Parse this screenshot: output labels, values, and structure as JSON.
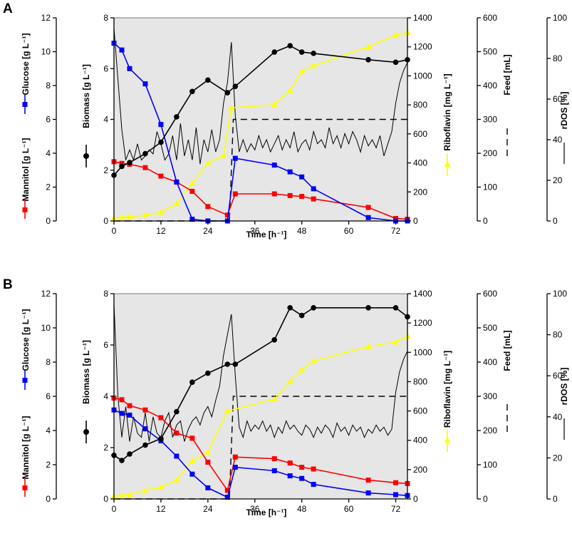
{
  "chart_data": [
    {
      "type": "line",
      "panel": "A",
      "xlabel": "Time [h⁻¹]",
      "xlim": [
        0,
        75
      ],
      "xticks": [
        0,
        12,
        24,
        36,
        48,
        60,
        72
      ],
      "axes": {
        "glucose": {
          "label": "Glucose [g L⁻¹]",
          "lim": [
            0,
            12
          ],
          "ticks": [
            0,
            2,
            4,
            6,
            8,
            10,
            12
          ]
        },
        "mannitol": {
          "label": "Mannitol [g L⁻¹]",
          "lim": [
            0,
            12
          ],
          "ticks": [
            0,
            2,
            4,
            6,
            8,
            10,
            12
          ]
        },
        "biomass": {
          "label": "Biomass [g L⁻¹]",
          "lim": [
            0,
            8
          ],
          "ticks": [
            0,
            2,
            4,
            6,
            8
          ]
        },
        "riboflavin": {
          "label": "Riboflavin [mg L⁻¹]",
          "lim": [
            0,
            1400
          ],
          "ticks": [
            0,
            200,
            400,
            600,
            800,
            1000,
            1200,
            1400
          ]
        },
        "feed": {
          "label": "Feed [mL]",
          "lim": [
            0,
            600
          ],
          "ticks": [
            0,
            100,
            200,
            300,
            400,
            500,
            600
          ]
        },
        "rdos": {
          "label": "rDOS [%]",
          "lim": [
            0,
            100
          ],
          "ticks": [
            0,
            20,
            40,
            60,
            80,
            100
          ]
        }
      },
      "series": [
        {
          "name": "Glucose",
          "axis": "glucose",
          "color": "#0000ff",
          "marker": "square",
          "x": [
            0,
            2,
            4,
            8,
            12,
            16,
            20,
            24,
            29,
            31,
            41,
            45,
            48,
            51,
            65,
            72,
            75
          ],
          "y": [
            10.5,
            10.1,
            9.0,
            8.1,
            5.7,
            2.3,
            0.1,
            0.0,
            0.0,
            3.7,
            3.3,
            2.9,
            2.6,
            1.9,
            0.2,
            0.0,
            0.0
          ]
        },
        {
          "name": "Mannitol",
          "axis": "mannitol",
          "color": "#ff0000",
          "marker": "square",
          "x": [
            0,
            2,
            4,
            8,
            12,
            16,
            20,
            24,
            29,
            31,
            41,
            45,
            48,
            51,
            65,
            72,
            75
          ],
          "y": [
            3.5,
            3.4,
            3.35,
            3.15,
            2.65,
            2.3,
            1.75,
            0.85,
            0.35,
            1.6,
            1.6,
            1.5,
            1.45,
            1.3,
            0.8,
            0.15,
            0.1
          ]
        },
        {
          "name": "Biomass",
          "axis": "biomass",
          "color": "#000000",
          "marker": "circle",
          "x": [
            0,
            2,
            4,
            8,
            12,
            16,
            20,
            24,
            29,
            31,
            41,
            45,
            48,
            51,
            65,
            72,
            75
          ],
          "y": [
            1.8,
            2.15,
            2.3,
            2.65,
            3.1,
            4.1,
            5.1,
            5.55,
            5.05,
            5.3,
            6.65,
            6.9,
            6.65,
            6.6,
            6.35,
            6.25,
            6.35
          ]
        },
        {
          "name": "Riboflavin",
          "axis": "riboflavin",
          "color": "#ffff00",
          "marker": "triangle",
          "x": [
            0,
            2,
            4,
            8,
            12,
            16,
            20,
            24,
            28,
            30,
            41,
            45,
            48,
            51,
            65,
            72,
            75
          ],
          "y": [
            20,
            25,
            30,
            40,
            60,
            120,
            260,
            400,
            450,
            780,
            800,
            900,
            1030,
            1070,
            1200,
            1280,
            1300
          ]
        },
        {
          "name": "Feed",
          "axis": "feed",
          "color": "#000000",
          "style": "dashed",
          "x": [
            0,
            29.5,
            30.5,
            75
          ],
          "y": [
            0,
            0,
            300,
            300
          ]
        },
        {
          "name": "rDOS",
          "axis": "rdos",
          "color": "#000000",
          "style": "solid-thin",
          "x": [
            0,
            1,
            2,
            3,
            4,
            5,
            6,
            7,
            8,
            9,
            10,
            11,
            12,
            13,
            14,
            15,
            16,
            17,
            18,
            19,
            20,
            21,
            22,
            23,
            24,
            25,
            26,
            27,
            28,
            29,
            30,
            31,
            32,
            33,
            34,
            35,
            36,
            37,
            38,
            39,
            40,
            41,
            42,
            43,
            44,
            45,
            46,
            47,
            48,
            49,
            50,
            51,
            52,
            53,
            54,
            55,
            56,
            57,
            58,
            59,
            60,
            61,
            62,
            63,
            64,
            65,
            66,
            67,
            68,
            69,
            70,
            71,
            72,
            73,
            74,
            75
          ],
          "y": [
            95,
            70,
            45,
            30,
            35,
            30,
            38,
            30,
            32,
            35,
            33,
            44,
            38,
            30,
            33,
            42,
            30,
            48,
            32,
            40,
            30,
            46,
            28,
            40,
            34,
            45,
            34,
            40,
            58,
            68,
            88,
            52,
            34,
            40,
            34,
            38,
            35,
            42,
            36,
            40,
            34,
            38,
            42,
            35,
            40,
            36,
            44,
            34,
            38,
            40,
            35,
            44,
            38,
            40,
            36,
            46,
            38,
            42,
            36,
            43,
            38,
            44,
            40,
            34,
            42,
            37,
            40,
            36,
            42,
            32,
            38,
            44,
            58,
            68,
            74,
            78
          ]
        }
      ]
    },
    {
      "type": "line",
      "panel": "B",
      "xlabel": "Time [h⁻¹]",
      "xlim": [
        0,
        75
      ],
      "xticks": [
        0,
        12,
        24,
        36,
        48,
        60,
        72
      ],
      "axes": {
        "glucose": {
          "label": "Glucose [g L⁻¹]",
          "lim": [
            0,
            12
          ],
          "ticks": [
            0,
            2,
            4,
            6,
            8,
            10,
            12
          ]
        },
        "mannitol": {
          "label": "Mannitol [g L⁻¹]",
          "lim": [
            0,
            12
          ],
          "ticks": [
            0,
            2,
            4,
            6,
            8,
            10,
            12
          ]
        },
        "biomass": {
          "label": "Biomass [g L⁻¹]",
          "lim": [
            0,
            8
          ],
          "ticks": [
            0,
            2,
            4,
            6,
            8
          ]
        },
        "riboflavin": {
          "label": "Riboflavin [mg L⁻¹]",
          "lim": [
            0,
            1400
          ],
          "ticks": [
            0,
            200,
            400,
            600,
            800,
            1000,
            1200,
            1400
          ]
        },
        "feed": {
          "label": "Feed [mL]",
          "lim": [
            0,
            600
          ],
          "ticks": [
            0,
            100,
            200,
            300,
            400,
            500,
            600
          ]
        },
        "rdos": {
          "label": "rDOS [%]",
          "lim": [
            0,
            100
          ],
          "ticks": [
            0,
            20,
            40,
            60,
            80,
            100
          ]
        }
      },
      "series": [
        {
          "name": "Glucose",
          "axis": "glucose",
          "color": "#0000ff",
          "marker": "square",
          "x": [
            0,
            2,
            4,
            8,
            12,
            16,
            20,
            24,
            29,
            31,
            41,
            45,
            48,
            51,
            65,
            72,
            75
          ],
          "y": [
            5.2,
            5.0,
            4.9,
            4.1,
            3.4,
            2.5,
            1.45,
            0.65,
            0.1,
            1.85,
            1.65,
            1.35,
            1.2,
            0.85,
            0.35,
            0.25,
            0.2
          ]
        },
        {
          "name": "Mannitol",
          "axis": "mannitol",
          "color": "#ff0000",
          "marker": "square",
          "x": [
            0,
            2,
            4,
            8,
            12,
            16,
            20,
            24,
            29,
            31,
            41,
            45,
            48,
            51,
            65,
            72,
            75
          ],
          "y": [
            5.9,
            5.8,
            5.45,
            5.2,
            4.75,
            3.85,
            3.55,
            2.15,
            0.5,
            2.45,
            2.35,
            2.1,
            1.85,
            1.75,
            1.1,
            0.95,
            0.9
          ]
        },
        {
          "name": "Biomass",
          "axis": "biomass",
          "color": "#000000",
          "marker": "circle",
          "x": [
            0,
            2,
            4,
            8,
            12,
            16,
            20,
            24,
            29,
            31,
            41,
            45,
            48,
            51,
            65,
            72,
            75
          ],
          "y": [
            1.7,
            1.5,
            1.75,
            2.1,
            2.35,
            3.4,
            4.55,
            4.9,
            5.25,
            5.25,
            6.2,
            7.45,
            7.15,
            7.45,
            7.45,
            7.45,
            7.1
          ]
        },
        {
          "name": "Riboflavin",
          "axis": "riboflavin",
          "color": "#ffff00",
          "marker": "triangle",
          "x": [
            0,
            2,
            4,
            8,
            12,
            16,
            20,
            24,
            29,
            41,
            45,
            48,
            51,
            65,
            72,
            75
          ],
          "y": [
            20,
            25,
            30,
            60,
            80,
            130,
            260,
            320,
            600,
            680,
            800,
            880,
            940,
            1040,
            1070,
            1110
          ]
        },
        {
          "name": "Feed",
          "axis": "feed",
          "color": "#000000",
          "style": "dashed",
          "x": [
            0,
            29.5,
            30.5,
            75
          ],
          "y": [
            0,
            0,
            300,
            300
          ]
        },
        {
          "name": "rDOS",
          "axis": "rdos",
          "color": "#000000",
          "style": "solid-thin",
          "x": [
            0,
            1,
            2,
            3,
            4,
            5,
            6,
            7,
            8,
            9,
            10,
            11,
            12,
            13,
            14,
            15,
            16,
            17,
            18,
            19,
            20,
            21,
            22,
            23,
            24,
            25,
            26,
            27,
            28,
            29,
            30,
            31,
            32,
            33,
            34,
            35,
            36,
            37,
            38,
            39,
            40,
            41,
            42,
            43,
            44,
            45,
            46,
            47,
            48,
            49,
            50,
            51,
            52,
            53,
            54,
            55,
            56,
            57,
            58,
            59,
            60,
            61,
            62,
            63,
            64,
            65,
            66,
            67,
            68,
            69,
            70,
            71,
            72,
            73,
            74,
            75
          ],
          "y": [
            95,
            50,
            30,
            45,
            28,
            40,
            32,
            30,
            42,
            28,
            40,
            32,
            30,
            38,
            42,
            30,
            36,
            38,
            28,
            34,
            38,
            40,
            36,
            42,
            45,
            40,
            48,
            55,
            70,
            80,
            90,
            60,
            35,
            30,
            38,
            33,
            36,
            34,
            38,
            33,
            36,
            30,
            35,
            32,
            38,
            34,
            36,
            33,
            31,
            36,
            34,
            30,
            35,
            32,
            36,
            34,
            30,
            37,
            33,
            35,
            31,
            36,
            33,
            35,
            30,
            34,
            32,
            36,
            33,
            35,
            31,
            34,
            52,
            62,
            68,
            72
          ]
        }
      ]
    }
  ],
  "panels": [
    "A",
    "B"
  ]
}
